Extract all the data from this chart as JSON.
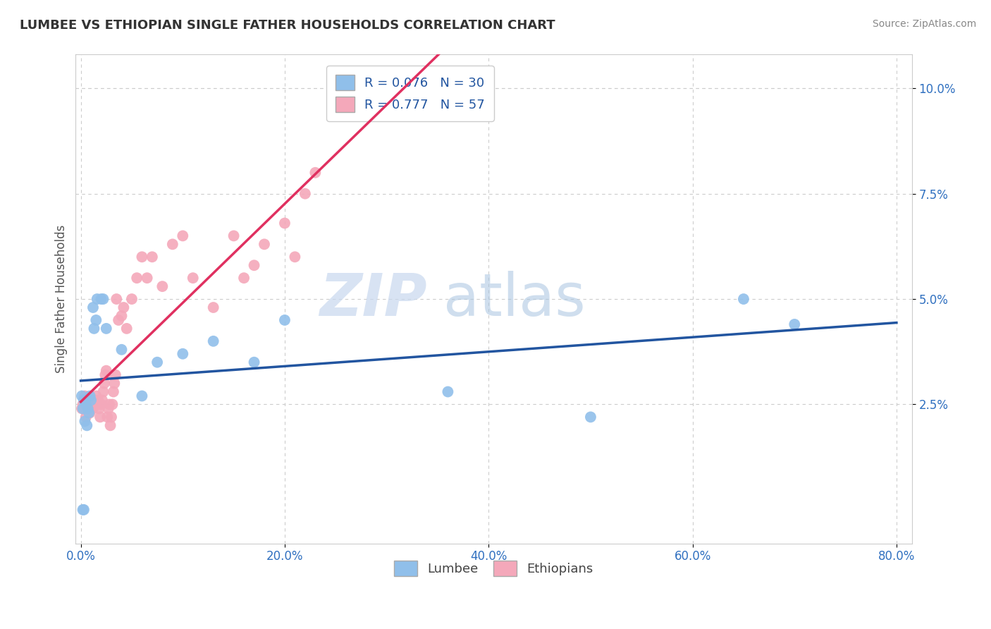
{
  "title": "LUMBEE VS ETHIOPIAN SINGLE FATHER HOUSEHOLDS CORRELATION CHART",
  "source_text": "Source: ZipAtlas.com",
  "ylabel": "Single Father Households",
  "xlim": [
    0,
    0.8
  ],
  "ylim": [
    -0.005,
    0.105
  ],
  "plot_xlim": [
    0,
    0.8
  ],
  "plot_ylim": [
    0,
    0.1
  ],
  "xticks": [
    0.0,
    0.2,
    0.4,
    0.6,
    0.8
  ],
  "yticks": [
    0.025,
    0.05,
    0.075,
    0.1
  ],
  "xtick_labels": [
    "0.0%",
    "20.0%",
    "40.0%",
    "60.0%",
    "80.0%"
  ],
  "ytick_labels": [
    "2.5%",
    "5.0%",
    "7.5%",
    "10.0%"
  ],
  "lumbee_color": "#90BFEA",
  "ethiopian_color": "#F4A8BA",
  "lumbee_line_color": "#2255A0",
  "ethiopian_line_color": "#E03060",
  "R_lumbee": 0.076,
  "N_lumbee": 30,
  "R_ethiopian": 0.777,
  "N_ethiopian": 57,
  "background_color": "#ffffff",
  "lumbee_x": [
    0.001,
    0.002,
    0.003,
    0.004,
    0.005,
    0.006,
    0.007,
    0.008,
    0.009,
    0.01,
    0.012,
    0.013,
    0.015,
    0.016,
    0.02,
    0.022,
    0.025,
    0.04,
    0.06,
    0.075,
    0.1,
    0.13,
    0.17,
    0.2,
    0.36,
    0.5,
    0.65,
    0.7,
    0.003,
    0.002
  ],
  "lumbee_y": [
    0.027,
    0.024,
    0.026,
    0.021,
    0.025,
    0.02,
    0.024,
    0.023,
    0.027,
    0.026,
    0.048,
    0.043,
    0.045,
    0.05,
    0.05,
    0.05,
    0.043,
    0.038,
    0.027,
    0.035,
    0.037,
    0.04,
    0.035,
    0.045,
    0.028,
    0.022,
    0.05,
    0.044,
    0.0,
    0.0
  ],
  "ethiopian_x": [
    0.001,
    0.002,
    0.003,
    0.004,
    0.005,
    0.006,
    0.007,
    0.008,
    0.009,
    0.01,
    0.011,
    0.012,
    0.013,
    0.014,
    0.015,
    0.016,
    0.017,
    0.018,
    0.019,
    0.02,
    0.021,
    0.022,
    0.023,
    0.024,
    0.025,
    0.026,
    0.027,
    0.028,
    0.029,
    0.03,
    0.031,
    0.032,
    0.033,
    0.034,
    0.035,
    0.037,
    0.04,
    0.042,
    0.045,
    0.05,
    0.055,
    0.06,
    0.065,
    0.07,
    0.08,
    0.09,
    0.1,
    0.11,
    0.13,
    0.15,
    0.16,
    0.17,
    0.18,
    0.2,
    0.21,
    0.22,
    0.23
  ],
  "ethiopian_y": [
    0.024,
    0.025,
    0.026,
    0.027,
    0.022,
    0.025,
    0.026,
    0.024,
    0.023,
    0.025,
    0.026,
    0.024,
    0.025,
    0.026,
    0.027,
    0.025,
    0.026,
    0.024,
    0.022,
    0.025,
    0.026,
    0.028,
    0.03,
    0.032,
    0.033,
    0.022,
    0.024,
    0.025,
    0.02,
    0.022,
    0.025,
    0.028,
    0.03,
    0.032,
    0.05,
    0.045,
    0.046,
    0.048,
    0.043,
    0.05,
    0.055,
    0.06,
    0.055,
    0.06,
    0.053,
    0.063,
    0.065,
    0.055,
    0.048,
    0.065,
    0.055,
    0.058,
    0.063,
    0.068,
    0.06,
    0.075,
    0.08
  ]
}
